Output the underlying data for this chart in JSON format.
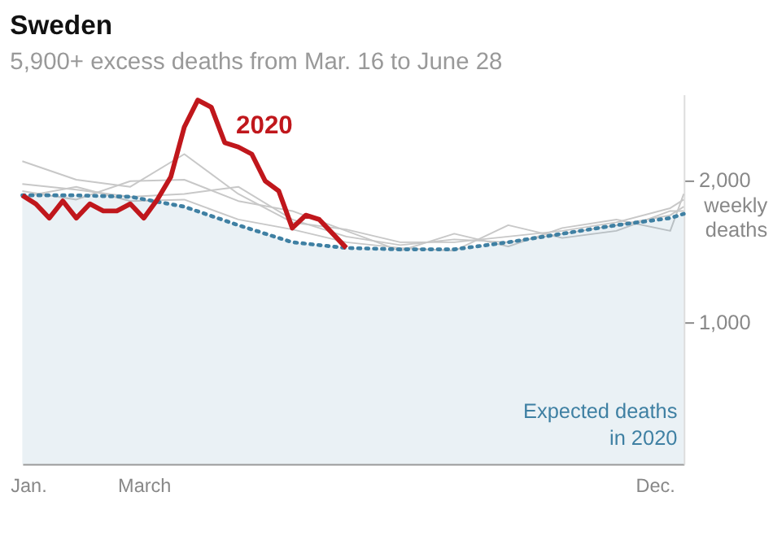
{
  "chart_data": {
    "type": "line",
    "title": "Sweden",
    "subtitle": "5,900+ excess deaths from Mar. 16 to June 28",
    "ylabel": "weekly deaths",
    "xlim": [
      "2020-01-12",
      "2020-12-20"
    ],
    "xticks": [
      {
        "value": "2020-01-15",
        "label": "Jan."
      },
      {
        "value": "2020-03-15",
        "label": "March"
      },
      {
        "value": "2020-12-05",
        "label": "Dec."
      }
    ],
    "ylim": [
      0,
      2600
    ],
    "yticks": [
      {
        "value": 1000,
        "label": "1,000"
      },
      {
        "value": 2000,
        "label": "2,000"
      }
    ],
    "marker": "none",
    "series": [
      {
        "color": "#c8c8c8",
        "x": [
          "2020-01-12",
          "2020-02-09",
          "2020-03-08",
          "2020-04-05",
          "2020-05-03",
          "2020-05-31",
          "2020-06-28",
          "2020-07-26",
          "2020-08-23",
          "2020-09-20",
          "2020-10-18",
          "2020-11-15",
          "2020-12-13",
          "2020-12-20"
        ],
        "values": [
          2130,
          2000,
          1950,
          2180,
          1900,
          1700,
          1650,
          1560,
          1560,
          1600,
          1640,
          1700,
          1800,
          1860
        ]
      },
      {
        "color": "#c8c8c8",
        "x": [
          "2020-01-12",
          "2020-02-09",
          "2020-03-08",
          "2020-04-05",
          "2020-05-03",
          "2020-05-31",
          "2020-06-28",
          "2020-07-26",
          "2020-08-23",
          "2020-09-20",
          "2020-10-18",
          "2020-11-15",
          "2020-12-13",
          "2020-12-20"
        ],
        "values": [
          1970,
          1930,
          1880,
          1900,
          1950,
          1720,
          1600,
          1540,
          1580,
          1560,
          1620,
          1680,
          1750,
          1810
        ]
      },
      {
        "color": "#c8c8c8",
        "x": [
          "2020-01-12",
          "2020-02-09",
          "2020-03-08",
          "2020-04-05",
          "2020-05-03",
          "2020-05-31",
          "2020-06-28",
          "2020-07-26",
          "2020-08-23",
          "2020-09-20",
          "2020-10-18",
          "2020-11-15",
          "2020-12-13",
          "2020-12-20"
        ],
        "values": [
          1920,
          1860,
          1990,
          2000,
          1850,
          1780,
          1640,
          1500,
          1620,
          1530,
          1660,
          1720,
          1640,
          1900
        ]
      },
      {
        "color": "#c8c8c8",
        "x": [
          "2020-01-12",
          "2020-02-09",
          "2020-03-08",
          "2020-04-05",
          "2020-05-03",
          "2020-05-31",
          "2020-06-28",
          "2020-07-26",
          "2020-08-23",
          "2020-09-20",
          "2020-10-18",
          "2020-11-15",
          "2020-12-13",
          "2020-12-20"
        ],
        "values": [
          1880,
          1950,
          1850,
          1860,
          1720,
          1650,
          1560,
          1520,
          1500,
          1680,
          1590,
          1640,
          1780,
          1780
        ]
      },
      {
        "name": "Expected deaths in 2020",
        "type": "area",
        "line_style": "dotted",
        "color": "#3f80a3",
        "x": [
          "2020-01-12",
          "2020-02-09",
          "2020-03-08",
          "2020-04-05",
          "2020-05-03",
          "2020-05-31",
          "2020-06-28",
          "2020-07-26",
          "2020-08-23",
          "2020-09-20",
          "2020-10-18",
          "2020-11-15",
          "2020-12-13",
          "2020-12-20"
        ],
        "values": [
          1890,
          1890,
          1880,
          1810,
          1680,
          1560,
          1520,
          1510,
          1510,
          1560,
          1620,
          1680,
          1730,
          1760
        ]
      },
      {
        "name": "2020",
        "color": "#c0171c",
        "x": [
          "2020-01-12",
          "2020-01-19",
          "2020-01-26",
          "2020-02-02",
          "2020-02-09",
          "2020-02-16",
          "2020-02-23",
          "2020-03-01",
          "2020-03-08",
          "2020-03-15",
          "2020-03-22",
          "2020-03-29",
          "2020-04-05",
          "2020-04-12",
          "2020-04-19",
          "2020-04-26",
          "2020-05-03",
          "2020-05-10",
          "2020-05-17",
          "2020-05-24",
          "2020-05-31",
          "2020-06-07",
          "2020-06-14",
          "2020-06-21",
          "2020-06-28"
        ],
        "values": [
          1890,
          1830,
          1730,
          1850,
          1730,
          1830,
          1780,
          1780,
          1830,
          1730,
          1860,
          2020,
          2370,
          2560,
          2510,
          2260,
          2230,
          2180,
          1990,
          1920,
          1660,
          1750,
          1720,
          1620,
          1520
        ]
      }
    ]
  }
}
